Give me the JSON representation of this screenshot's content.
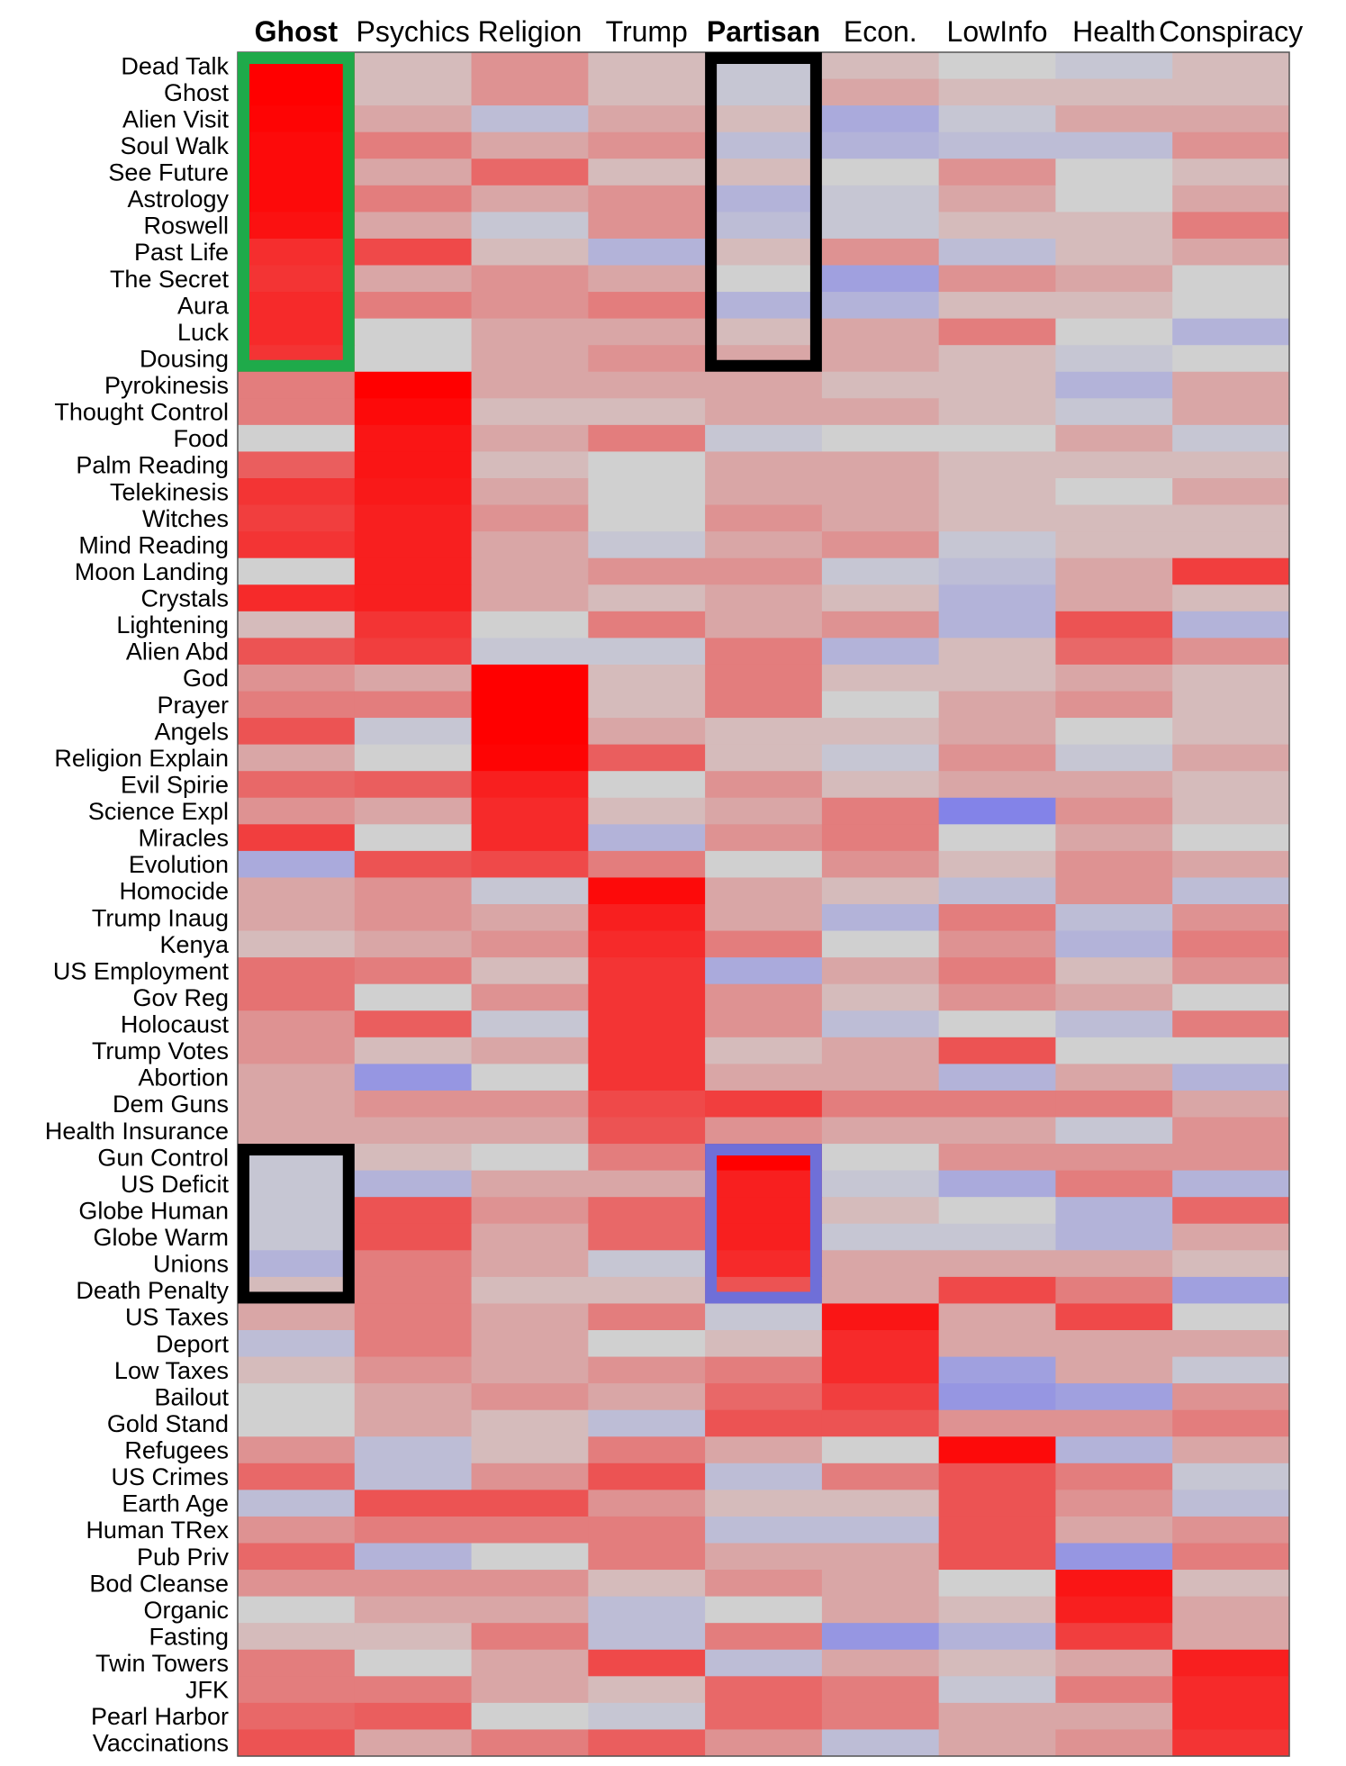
{
  "chart_data": {
    "type": "heatmap",
    "title": "",
    "xlabel": "",
    "ylabel": "",
    "columns": [
      "Ghost",
      "Psychics",
      "Religion",
      "Trump",
      "Partisan",
      "Econ.",
      "LowInfo",
      "Health",
      "Conspiracy"
    ],
    "highlighted_columns": {
      "Ghost": "#1faa4a",
      "Partisan": "#6f6fd8"
    },
    "rows": [
      "Dead Talk",
      "Ghost",
      "Alien Visit",
      "Soul Walk",
      "See Future",
      "Astrology",
      "Roswell",
      "Past Life",
      "The Secret",
      "Aura",
      "Luck",
      "Dousing",
      "Pyrokinesis",
      "Thought Control",
      "Food",
      "Palm Reading",
      "Telekinesis",
      "Witches",
      "Mind Reading",
      "Moon Landing",
      "Crystals",
      "Lightening",
      "Alien Abd",
      "God",
      "Prayer",
      "Angels",
      "Religion Explain",
      "Evil Spirie",
      "Science Expl",
      "Miracles",
      "Evolution",
      "Homocide",
      "Trump Inaug",
      "Kenya",
      "US Employment",
      "Gov Reg",
      "Holocaust",
      "Trump Votes",
      "Abortion",
      "Dem Guns",
      "Health Insurance",
      "Gun Control",
      "US Deficit",
      "Globe Human",
      "Globe Warm",
      "Unions",
      "Death Penalty",
      "US Taxes",
      "Deport",
      "Low Taxes",
      "Bailout",
      "Gold Stand",
      "Refugees",
      "US Crimes",
      "Earth Age",
      "Human TRex",
      "Pub Priv",
      "Bod Cleanse",
      "Organic",
      "Fasting",
      "Twin Towers",
      "JFK",
      "Pearl Harbor",
      "Vaccinations"
    ],
    "color_scale": {
      "min": -1,
      "max": 1,
      "low_color": "#7070ee",
      "mid_color": "#d0d0d0",
      "high_color": "#ff0000"
    },
    "values": [
      [
        1.0,
        0.1,
        0.3,
        0.1,
        -0.1,
        0.1,
        0.0,
        -0.1,
        0.1
      ],
      [
        1.0,
        0.1,
        0.3,
        0.1,
        -0.1,
        0.2,
        0.1,
        0.1,
        0.1
      ],
      [
        0.98,
        0.2,
        -0.2,
        0.2,
        0.1,
        -0.4,
        -0.1,
        0.2,
        0.2
      ],
      [
        0.95,
        0.4,
        0.2,
        0.3,
        -0.2,
        -0.3,
        -0.2,
        -0.2,
        0.3
      ],
      [
        0.95,
        0.2,
        0.5,
        0.1,
        0.1,
        0.0,
        0.3,
        0.0,
        0.1
      ],
      [
        0.95,
        0.4,
        0.2,
        0.3,
        -0.3,
        -0.1,
        0.2,
        0.0,
        0.2
      ],
      [
        0.92,
        0.2,
        -0.1,
        0.3,
        -0.2,
        -0.1,
        0.1,
        0.1,
        0.4
      ],
      [
        0.78,
        0.65,
        0.1,
        -0.3,
        0.1,
        0.3,
        -0.2,
        0.1,
        0.2
      ],
      [
        0.75,
        0.2,
        0.3,
        0.2,
        0.0,
        -0.5,
        0.3,
        0.2,
        0.0
      ],
      [
        0.8,
        0.4,
        0.3,
        0.4,
        -0.3,
        -0.3,
        0.1,
        0.1,
        0.0
      ],
      [
        0.8,
        0.0,
        0.2,
        0.2,
        0.1,
        0.2,
        0.4,
        0.0,
        -0.3
      ],
      [
        0.75,
        0.0,
        0.2,
        0.3,
        0.2,
        0.2,
        0.1,
        -0.1,
        0.0
      ],
      [
        0.4,
        1.0,
        0.2,
        0.2,
        0.2,
        0.1,
        0.1,
        -0.3,
        0.2
      ],
      [
        0.4,
        0.95,
        0.1,
        0.1,
        0.2,
        0.2,
        0.1,
        -0.1,
        0.2
      ],
      [
        0.0,
        0.9,
        0.2,
        0.4,
        -0.1,
        0.0,
        0.0,
        0.2,
        -0.1
      ],
      [
        0.55,
        0.9,
        0.1,
        0.0,
        0.2,
        0.2,
        0.1,
        0.1,
        0.1
      ],
      [
        0.75,
        0.88,
        0.2,
        0.0,
        0.2,
        0.2,
        0.1,
        0.0,
        0.2
      ],
      [
        0.7,
        0.85,
        0.3,
        0.0,
        0.3,
        0.2,
        0.1,
        0.1,
        0.1
      ],
      [
        0.75,
        0.85,
        0.2,
        -0.1,
        0.2,
        0.3,
        -0.1,
        0.1,
        0.1
      ],
      [
        0.0,
        0.85,
        0.2,
        0.3,
        0.3,
        -0.1,
        -0.2,
        0.2,
        0.7
      ],
      [
        0.8,
        0.85,
        0.2,
        0.1,
        0.2,
        0.1,
        -0.3,
        0.2,
        0.1
      ],
      [
        0.1,
        0.75,
        0.0,
        0.4,
        0.2,
        0.3,
        -0.3,
        0.6,
        -0.3
      ],
      [
        0.6,
        0.7,
        -0.1,
        -0.1,
        0.4,
        -0.3,
        0.1,
        0.5,
        0.3
      ],
      [
        0.3,
        0.2,
        1.0,
        0.1,
        0.4,
        0.1,
        0.1,
        0.2,
        0.1
      ],
      [
        0.4,
        0.4,
        1.0,
        0.1,
        0.4,
        0.0,
        0.2,
        0.3,
        0.1
      ],
      [
        0.6,
        -0.1,
        1.0,
        0.2,
        0.1,
        0.1,
        0.2,
        0.0,
        0.1
      ],
      [
        0.2,
        0.0,
        0.98,
        0.55,
        0.1,
        -0.1,
        0.3,
        -0.1,
        0.2
      ],
      [
        0.5,
        0.55,
        0.85,
        0.0,
        0.3,
        0.1,
        0.2,
        0.2,
        0.1
      ],
      [
        0.3,
        0.2,
        0.8,
        0.1,
        0.2,
        0.4,
        -0.8,
        0.3,
        0.1
      ],
      [
        0.7,
        0.0,
        0.8,
        -0.3,
        0.3,
        0.4,
        0.0,
        0.2,
        0.0
      ],
      [
        -0.4,
        0.6,
        0.65,
        0.4,
        0.0,
        0.3,
        0.1,
        0.3,
        0.2
      ],
      [
        0.2,
        0.3,
        -0.1,
        0.95,
        0.2,
        0.1,
        -0.2,
        0.3,
        -0.2
      ],
      [
        0.2,
        0.3,
        0.2,
        0.85,
        0.2,
        -0.3,
        0.4,
        -0.2,
        0.3
      ],
      [
        0.1,
        0.2,
        0.3,
        0.8,
        0.4,
        0.0,
        0.3,
        -0.3,
        0.4
      ],
      [
        0.45,
        0.4,
        0.1,
        0.75,
        -0.4,
        0.2,
        0.4,
        0.1,
        0.3
      ],
      [
        0.45,
        0.0,
        0.3,
        0.75,
        0.3,
        0.1,
        0.3,
        0.2,
        0.0
      ],
      [
        0.3,
        0.55,
        -0.1,
        0.75,
        0.3,
        -0.2,
        0.0,
        -0.2,
        0.4
      ],
      [
        0.3,
        0.1,
        0.2,
        0.75,
        0.1,
        0.2,
        0.6,
        0.0,
        0.0
      ],
      [
        0.2,
        -0.6,
        0.0,
        0.75,
        0.2,
        0.2,
        -0.3,
        0.2,
        -0.3
      ],
      [
        0.2,
        0.3,
        0.3,
        0.65,
        0.7,
        0.4,
        0.4,
        0.4,
        0.2
      ],
      [
        0.2,
        0.2,
        0.2,
        0.6,
        0.3,
        0.2,
        0.2,
        -0.1,
        0.3
      ],
      [
        -0.1,
        0.1,
        0.0,
        0.4,
        1.0,
        0.0,
        0.3,
        0.3,
        0.3
      ],
      [
        -0.1,
        -0.3,
        0.2,
        0.2,
        0.85,
        -0.1,
        -0.4,
        0.4,
        -0.3
      ],
      [
        -0.1,
        0.6,
        0.3,
        0.5,
        0.85,
        0.1,
        0.0,
        -0.3,
        0.5
      ],
      [
        -0.1,
        0.6,
        0.2,
        0.5,
        0.85,
        -0.1,
        -0.1,
        -0.3,
        0.2
      ],
      [
        -0.3,
        0.4,
        0.2,
        -0.1,
        0.8,
        0.2,
        0.2,
        0.2,
        0.1
      ],
      [
        0.1,
        0.4,
        0.1,
        0.1,
        0.6,
        0.2,
        0.65,
        0.4,
        -0.5
      ],
      [
        0.2,
        0.4,
        0.2,
        0.4,
        -0.1,
        0.9,
        0.2,
        0.65,
        0.0
      ],
      [
        -0.2,
        0.4,
        0.2,
        0.0,
        0.1,
        0.8,
        0.2,
        0.2,
        0.2
      ],
      [
        0.1,
        0.3,
        0.2,
        0.3,
        0.4,
        0.8,
        -0.5,
        0.2,
        -0.1
      ],
      [
        0.0,
        0.2,
        0.3,
        0.2,
        0.5,
        0.7,
        -0.6,
        -0.5,
        0.3
      ],
      [
        0.0,
        0.2,
        0.1,
        -0.2,
        0.6,
        0.6,
        0.3,
        0.3,
        0.4
      ],
      [
        0.3,
        -0.2,
        0.1,
        0.4,
        0.2,
        0.0,
        0.95,
        -0.3,
        0.2
      ],
      [
        0.5,
        -0.2,
        0.3,
        0.6,
        -0.2,
        0.4,
        0.6,
        0.4,
        -0.1
      ],
      [
        -0.2,
        0.6,
        0.6,
        0.3,
        0.1,
        0.1,
        0.6,
        0.3,
        -0.2
      ],
      [
        0.3,
        0.4,
        0.4,
        0.4,
        -0.2,
        -0.2,
        0.6,
        0.2,
        0.3
      ],
      [
        0.5,
        -0.3,
        0.0,
        0.4,
        0.2,
        0.2,
        0.6,
        -0.6,
        0.4
      ],
      [
        0.3,
        0.3,
        0.3,
        0.1,
        0.3,
        0.2,
        0.0,
        0.9,
        0.1
      ],
      [
        0.0,
        0.2,
        0.2,
        -0.2,
        0.0,
        0.2,
        0.1,
        0.85,
        0.2
      ],
      [
        0.1,
        0.1,
        0.4,
        -0.2,
        0.4,
        -0.6,
        -0.3,
        0.7,
        0.2
      ],
      [
        0.4,
        0.0,
        0.2,
        0.65,
        -0.2,
        0.2,
        0.1,
        0.2,
        0.85
      ],
      [
        0.4,
        0.4,
        0.2,
        0.1,
        0.5,
        0.4,
        -0.1,
        0.4,
        0.8
      ],
      [
        0.5,
        0.55,
        0.0,
        -0.1,
        0.5,
        0.4,
        0.2,
        0.2,
        0.8
      ],
      [
        0.6,
        0.2,
        0.4,
        0.55,
        0.3,
        -0.2,
        0.2,
        0.3,
        0.75
      ]
    ],
    "highlight_boxes": [
      {
        "column": "Ghost",
        "rows": [
          "Dead Talk",
          "Dousing"
        ],
        "color": "#1faa4a"
      },
      {
        "column": "Partisan",
        "rows": [
          "Dead Talk",
          "Dousing"
        ],
        "color": "#000000"
      },
      {
        "column": "Ghost",
        "rows": [
          "Gun Control",
          "Death Penalty"
        ],
        "color": "#000000"
      },
      {
        "column": "Partisan",
        "rows": [
          "Gun Control",
          "Death Penalty"
        ],
        "color": "#6f6fd8"
      }
    ],
    "legend": "none",
    "grid": false
  }
}
